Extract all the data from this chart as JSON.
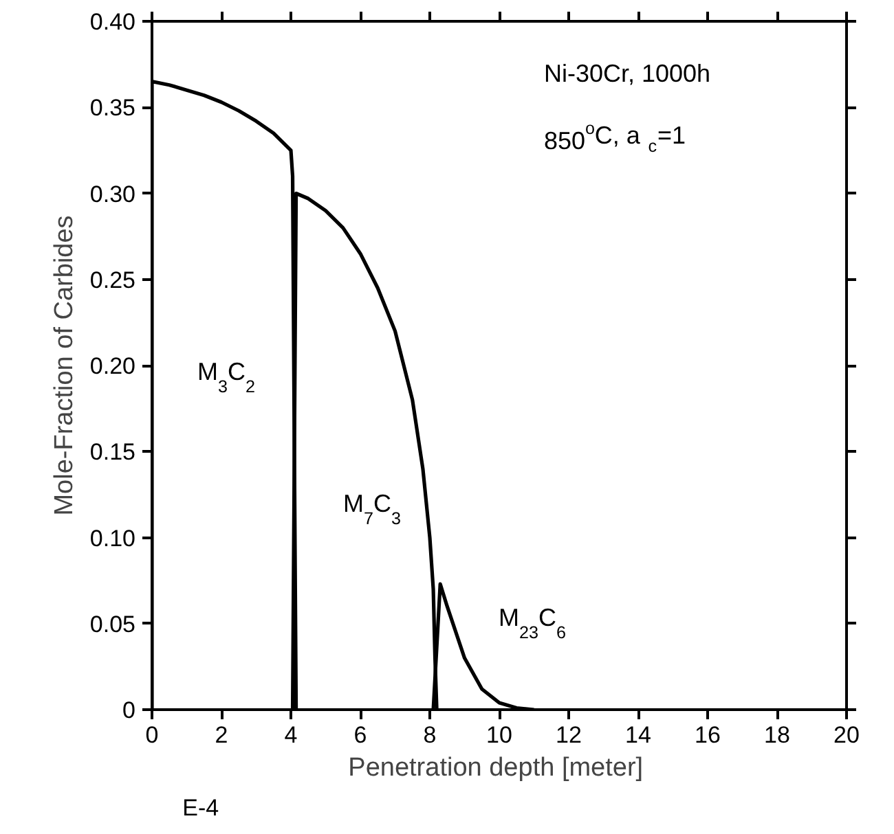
{
  "chart_data": {
    "type": "line",
    "xlabel": "Penetration depth  [meter]",
    "ylabel": "Mole-Fraction of Carbides",
    "xlim": [
      0,
      20
    ],
    "xticks": [
      0,
      2,
      4,
      6,
      8,
      10,
      12,
      14,
      16,
      18,
      20
    ],
    "ylim": [
      0,
      0.4
    ],
    "yticks": [
      0,
      0.05,
      {
        "value": 0.1,
        "label": "0.10"
      },
      0.15,
      {
        "value": 0.2,
        "label": "0.20"
      },
      0.25,
      {
        "value": 0.3,
        "label": "0.30"
      },
      0.35,
      {
        "value": 0.4,
        "label": "0.40"
      }
    ],
    "grid": false,
    "marker": "none",
    "line_style": "solid",
    "series": [
      {
        "color": "#000000",
        "x": [
          0,
          0,
          0.5,
          1,
          1.5,
          2,
          2.5,
          3,
          3.5,
          4.0,
          4.05,
          4.1,
          4.15
        ],
        "values": [
          0,
          0.365,
          0.363,
          0.36,
          0.357,
          0.353,
          0.348,
          0.342,
          0.335,
          0.325,
          0.31,
          0.15,
          0
        ]
      },
      {
        "color": "#000000",
        "x": [
          4.05,
          4.15,
          4.5,
          5,
          5.5,
          6,
          6.5,
          7,
          7.5,
          7.8,
          8.0,
          8.1,
          8.15,
          8.2
        ],
        "values": [
          0,
          0.3,
          0.297,
          0.29,
          0.28,
          0.265,
          0.245,
          0.22,
          0.18,
          0.14,
          0.1,
          0.07,
          0.03,
          0
        ]
      },
      {
        "color": "#000000",
        "x": [
          8.1,
          8.3,
          8.5,
          9,
          9.5,
          10,
          10.5,
          11
        ],
        "values": [
          0,
          0.073,
          0.06,
          0.03,
          0.012,
          0.004,
          0.001,
          0
        ]
      }
    ],
    "annotations": [
      "M$_{3}$C$_{2}$",
      "M$_{7}$C$_{3}$",
      "M$_{23}$C$_{6}$",
      "Ni-30Cr,  1000h",
      "850$^{o}$C,  a$_{c}$=1",
      "E-4"
    ]
  }
}
